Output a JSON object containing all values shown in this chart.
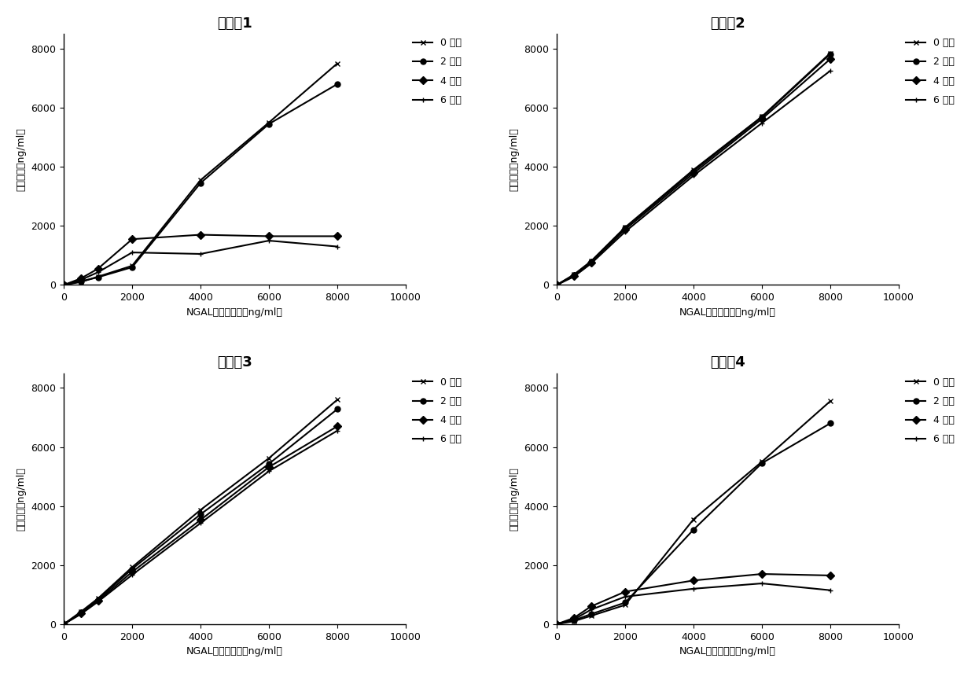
{
  "x_points": [
    0,
    500,
    1000,
    2000,
    4000,
    6000,
    8000
  ],
  "titles": [
    "实施例1",
    "实施例2",
    "实施例3",
    "实施例4"
  ],
  "legend_labels": [
    "0 个月",
    "2 个月",
    "4 个月",
    "6 个月"
  ],
  "xlabel": "NGAL标准品浓度（ng/ml）",
  "ylabel": "检测浓度（ng/ml）",
  "xlim": [
    0,
    10000
  ],
  "ylim": [
    0,
    8500
  ],
  "xticks": [
    0,
    2000,
    4000,
    6000,
    8000,
    10000
  ],
  "yticks": [
    0,
    2000,
    4000,
    6000,
    8000
  ],
  "plot1": {
    "series0": [
      0,
      100,
      280,
      650,
      3550,
      5500,
      7500
    ],
    "series1": [
      0,
      120,
      260,
      600,
      3450,
      5450,
      6800
    ],
    "series2": [
      0,
      220,
      550,
      1550,
      1700,
      1650,
      1650
    ],
    "series3": [
      0,
      170,
      430,
      1100,
      1050,
      1500,
      1300
    ]
  },
  "plot2": {
    "series0": [
      0,
      350,
      800,
      1950,
      3900,
      5700,
      7850
    ],
    "series1": [
      0,
      330,
      780,
      1930,
      3850,
      5680,
      7820
    ],
    "series2": [
      0,
      310,
      760,
      1880,
      3780,
      5620,
      7650
    ],
    "series3": [
      0,
      280,
      720,
      1800,
      3700,
      5480,
      7250
    ]
  },
  "plot3": {
    "series0": [
      0,
      420,
      870,
      1930,
      3870,
      5620,
      7600
    ],
    "series1": [
      0,
      390,
      830,
      1870,
      3720,
      5430,
      7280
    ],
    "series2": [
      0,
      360,
      790,
      1770,
      3530,
      5320,
      6700
    ],
    "series3": [
      0,
      340,
      760,
      1670,
      3420,
      5180,
      6550
    ]
  },
  "plot4": {
    "series0": [
      0,
      100,
      280,
      650,
      3550,
      5500,
      7550
    ],
    "series1": [
      0,
      130,
      340,
      730,
      3200,
      5450,
      6800
    ],
    "series2": [
      0,
      210,
      600,
      1100,
      1480,
      1700,
      1650
    ],
    "series3": [
      0,
      160,
      490,
      930,
      1200,
      1380,
      1150
    ]
  },
  "markers": [
    "x",
    "o",
    "D",
    "+"
  ],
  "line_color": "#000000",
  "bg_color": "#ffffff",
  "title_fontsize": 13,
  "label_fontsize": 9,
  "tick_fontsize": 9,
  "legend_fontsize": 9,
  "linewidth": 1.5,
  "markersize": 5
}
